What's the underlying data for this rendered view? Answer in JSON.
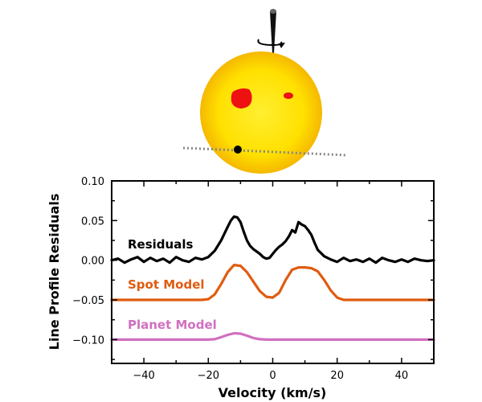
{
  "chart_data": {
    "type": "line",
    "xlabel": "Velocity (km/s)",
    "ylabel": "Line Profile Residuals",
    "xlim": [
      -50,
      50
    ],
    "ylim": [
      -0.13,
      0.1
    ],
    "x_ticks": [
      -40,
      -20,
      0,
      20,
      40
    ],
    "x_tick_labels": [
      "−40",
      "−20",
      "0",
      "20",
      "40"
    ],
    "y_ticks": [
      0.1,
      0.05,
      0.0,
      -0.05,
      -0.1
    ],
    "y_tick_labels": [
      "0.10",
      "0.05",
      "0.00",
      "−0.05",
      "−0.10"
    ],
    "grid": false,
    "legend": "inline labels on the left",
    "series": [
      {
        "name": "Residuals",
        "color": "#000000",
        "x": [
          -50,
          -48,
          -46,
          -44,
          -42,
          -40,
          -38,
          -36,
          -34,
          -32,
          -30,
          -28,
          -26,
          -24,
          -22,
          -20,
          -18,
          -16,
          -14,
          -13,
          -12,
          -11,
          -10,
          -9,
          -8,
          -7,
          -6,
          -5,
          -4,
          -3,
          -2,
          -1,
          0,
          1,
          2,
          3,
          4,
          5,
          6,
          7,
          8,
          9,
          10,
          11,
          12,
          13,
          14,
          16,
          18,
          20,
          22,
          24,
          26,
          28,
          30,
          32,
          34,
          36,
          38,
          40,
          42,
          44,
          46,
          48,
          50
        ],
        "y": [
          0.0,
          0.002,
          -0.003,
          0.001,
          0.004,
          -0.002,
          0.003,
          -0.001,
          0.002,
          -0.003,
          0.004,
          0.0,
          -0.002,
          0.003,
          0.001,
          0.004,
          0.012,
          0.025,
          0.042,
          0.05,
          0.055,
          0.054,
          0.048,
          0.036,
          0.025,
          0.018,
          0.014,
          0.011,
          0.008,
          0.004,
          0.002,
          0.003,
          0.008,
          0.013,
          0.017,
          0.02,
          0.024,
          0.03,
          0.038,
          0.035,
          0.048,
          0.045,
          0.043,
          0.038,
          0.032,
          0.022,
          0.013,
          0.005,
          0.001,
          -0.002,
          0.003,
          -0.001,
          0.001,
          -0.002,
          0.002,
          -0.003,
          0.003,
          0.0,
          -0.002,
          0.001,
          -0.002,
          0.002,
          0.0,
          -0.001,
          0.0
        ]
      },
      {
        "name": "Spot Model",
        "color": "#e05c10",
        "x": [
          -50,
          -22,
          -20,
          -18,
          -16,
          -14,
          -12,
          -10,
          -8,
          -6,
          -4,
          -2,
          0,
          2,
          4,
          6,
          8,
          10,
          12,
          14,
          16,
          18,
          20,
          22,
          50
        ],
        "y": [
          -0.05,
          -0.05,
          -0.049,
          -0.043,
          -0.03,
          -0.015,
          -0.006,
          -0.007,
          -0.015,
          -0.027,
          -0.039,
          -0.046,
          -0.047,
          -0.041,
          -0.025,
          -0.012,
          -0.009,
          -0.009,
          -0.01,
          -0.014,
          -0.025,
          -0.038,
          -0.047,
          -0.05,
          -0.05
        ]
      },
      {
        "name": "Planet Model",
        "color": "#d070c0",
        "x": [
          -50,
          -22,
          -20,
          -18,
          -16,
          -14,
          -12,
          -10,
          -8,
          -6,
          -4,
          -2,
          0,
          50
        ],
        "y": [
          -0.1,
          -0.1,
          -0.1,
          -0.0995,
          -0.097,
          -0.094,
          -0.092,
          -0.0925,
          -0.095,
          -0.098,
          -0.0995,
          -0.1,
          -0.1,
          -0.1
        ]
      }
    ]
  },
  "illustration": {
    "star_color": "#ffe000",
    "spot_color": "#ee1111",
    "planet_color": "#000000",
    "transit_chord_color": "#888888"
  }
}
